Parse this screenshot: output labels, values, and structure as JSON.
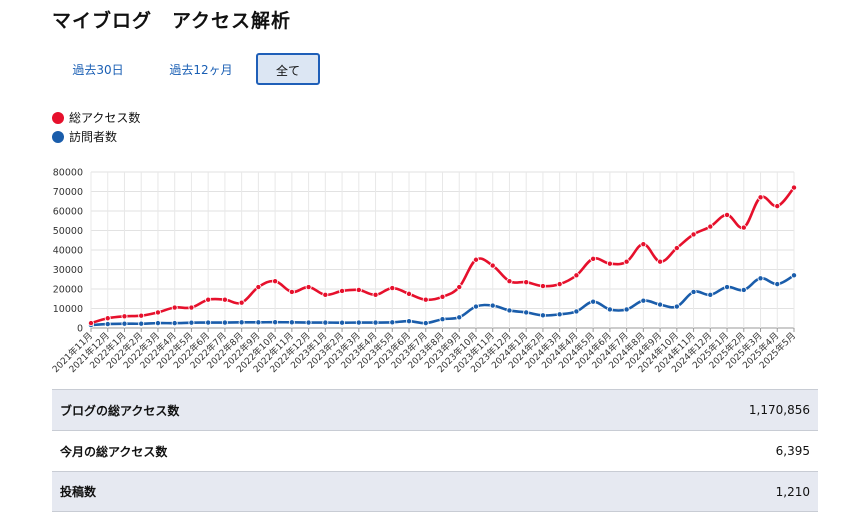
{
  "page": {
    "title": "マイブログ　アクセス解析"
  },
  "tabs": [
    {
      "label": "過去30日",
      "active": false
    },
    {
      "label": "過去12ヶ月",
      "active": false
    },
    {
      "label": "全て",
      "active": true
    }
  ],
  "colors": {
    "total": "#e6102c",
    "visitors": "#1a5dab",
    "active_tab_bg": "#dce6f3",
    "active_tab_border": "#1f5fb8"
  },
  "chart_data": {
    "type": "line",
    "ylim": [
      0,
      80000
    ],
    "yticks": [
      0,
      10000,
      20000,
      30000,
      40000,
      50000,
      60000,
      70000,
      80000
    ],
    "grid": true,
    "legend_position": "top-left",
    "categories": [
      "2021年11月",
      "2021年12月",
      "2022年1月",
      "2022年2月",
      "2022年3月",
      "2022年4月",
      "2022年5月",
      "2022年6月",
      "2022年7月",
      "2022年8月",
      "2022年9月",
      "2022年10月",
      "2022年11月",
      "2022年12月",
      "2023年1月",
      "2023年2月",
      "2023年3月",
      "2023年4月",
      "2023年5月",
      "2023年6月",
      "2023年7月",
      "2023年8月",
      "2023年9月",
      "2023年10月",
      "2023年11月",
      "2023年12月",
      "2024年1月",
      "2024年2月",
      "2024年3月",
      "2024年4月",
      "2024年5月",
      "2024年6月",
      "2024年7月",
      "2024年8月",
      "2024年9月",
      "2024年10月",
      "2024年11月",
      "2024年12月",
      "2025年1月",
      "2025年2月",
      "2025年3月",
      "2025年4月",
      "2025年5月"
    ],
    "series": [
      {
        "name": "総アクセス数",
        "values": [
          2500,
          5000,
          6000,
          6300,
          8000,
          10500,
          10500,
          14500,
          14500,
          13000,
          21000,
          24000,
          18500,
          21000,
          17000,
          19000,
          19500,
          17000,
          20500,
          17500,
          14500,
          16000,
          21000,
          35000,
          32000,
          24000,
          23500,
          21500,
          22500,
          27000,
          35500,
          33000,
          34000,
          43000,
          34000,
          41000,
          48000,
          52000,
          58000,
          51500,
          67000,
          62500,
          72000
        ]
      },
      {
        "name": "訪問者数",
        "values": [
          1500,
          2000,
          2200,
          2200,
          2500,
          2500,
          2700,
          2800,
          2800,
          2900,
          2900,
          3000,
          2900,
          2800,
          2800,
          2700,
          2800,
          2800,
          2900,
          3500,
          2500,
          4500,
          5500,
          11000,
          11500,
          9000,
          8000,
          6500,
          7000,
          8500,
          13500,
          9500,
          9500,
          14000,
          12000,
          11000,
          18500,
          17000,
          21000,
          19500,
          25500,
          22500,
          27000
        ]
      }
    ]
  },
  "stats": [
    {
      "label": "ブログの総アクセス数",
      "value": "1,170,856"
    },
    {
      "label": "今月の総アクセス数",
      "value": "6,395"
    },
    {
      "label": "投稿数",
      "value": "1,210"
    }
  ]
}
